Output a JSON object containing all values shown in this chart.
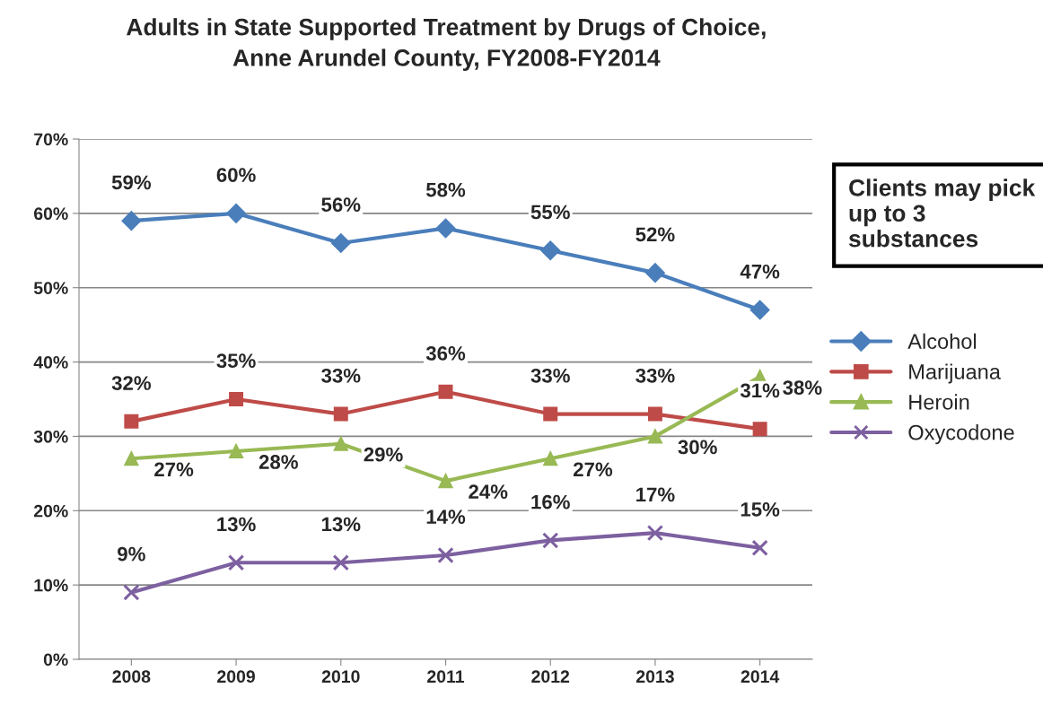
{
  "chart_data": {
    "type": "line",
    "title": "Adults in State Supported Treatment by Drugs of Choice,\nAnne Arundel County, FY2008-FY2014",
    "categories": [
      "2008",
      "2009",
      "2010",
      "2011",
      "2012",
      "2013",
      "2014"
    ],
    "series": [
      {
        "name": "Alcohol",
        "color": "#4a7ebb",
        "marker": "diamond",
        "values": [
          59,
          60,
          56,
          58,
          55,
          52,
          47
        ],
        "value_labels": [
          "59%",
          "60%",
          "56%",
          "58%",
          "55%",
          "52%",
          "47%"
        ]
      },
      {
        "name": "Marijuana",
        "color": "#be4b48",
        "marker": "square",
        "values": [
          32,
          35,
          33,
          36,
          33,
          33,
          31
        ],
        "value_labels": [
          "32%",
          "35%",
          "33%",
          "36%",
          "33%",
          "33%",
          "31%"
        ]
      },
      {
        "name": "Heroin",
        "color": "#98b954",
        "marker": "triangle",
        "values": [
          27,
          28,
          29,
          24,
          27,
          30,
          38
        ],
        "value_labels": [
          "27%",
          "28%",
          "29%",
          "24%",
          "27%",
          "30%",
          "38%"
        ]
      },
      {
        "name": "Oxycodone",
        "color": "#7d60a0",
        "marker": "cross",
        "values": [
          9,
          13,
          13,
          14,
          16,
          17,
          15
        ],
        "value_labels": [
          "9%",
          "13%",
          "13%",
          "14%",
          "16%",
          "17%",
          "15%"
        ]
      }
    ],
    "ylim": [
      0,
      70
    ],
    "yticks": [
      {
        "value": 0,
        "label": "0%"
      },
      {
        "value": 10,
        "label": "10%"
      },
      {
        "value": 20,
        "label": "20%"
      },
      {
        "value": 30,
        "label": "30%"
      },
      {
        "value": 40,
        "label": "40%"
      },
      {
        "value": 50,
        "label": "50%"
      },
      {
        "value": 60,
        "label": "60%"
      },
      {
        "value": 70,
        "label": "70%"
      }
    ],
    "grid": "y",
    "legend": "right",
    "line_style": "solid",
    "annotations": [
      "Clients may pick up to 3 substances"
    ]
  }
}
